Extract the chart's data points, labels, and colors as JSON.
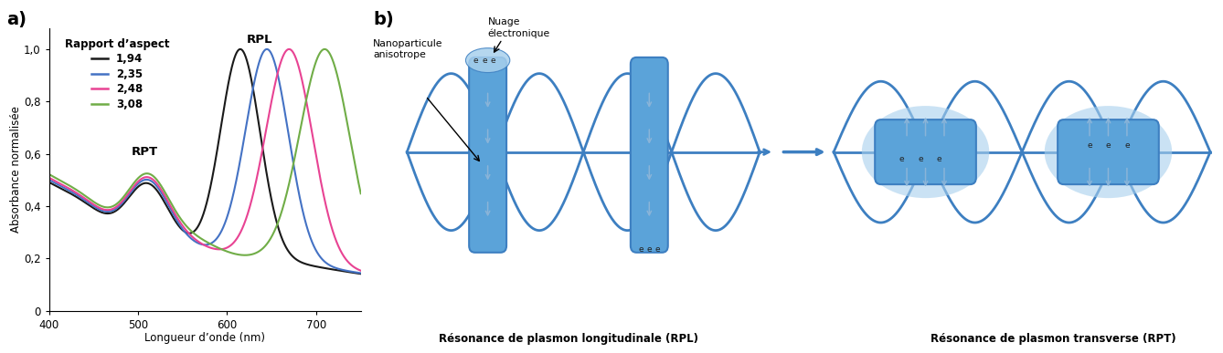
{
  "title_a": "a)",
  "title_b": "b)",
  "xlabel": "Longueur d’onde (nm)",
  "ylabel": "Absorbance normalisée",
  "legend_title": "Rapport d’aspect",
  "legend_labels": [
    "1,94",
    "2,35",
    "2,48",
    "3,08"
  ],
  "line_colors": [
    "#1a1a1a",
    "#4472c4",
    "#e84393",
    "#70ad47"
  ],
  "xlim": [
    400,
    750
  ],
  "ylim": [
    0,
    1.08
  ],
  "ytick_labels": [
    "0",
    "0,2",
    "0,4",
    "0,6",
    "0,8",
    "1,0"
  ],
  "xticks": [
    400,
    500,
    600,
    700
  ],
  "rpt_label": "RPT",
  "rpl_label": "RPL",
  "label_rpl_bottom": "Résonance de plasmon longitudinale (RPL)",
  "label_rpt_bottom": "Résonance de plasmon transverse (RPT)",
  "label_nano": "Nanoparticule\nanisotrope",
  "label_nuage": "Nuage\nélectronique",
  "wave_color": "#3d7fc1",
  "arrow_color": "#8ab4d8",
  "rod_color": "#5ba3d9",
  "rod_color_light": "#a8d0ed",
  "background_color": "#ffffff"
}
